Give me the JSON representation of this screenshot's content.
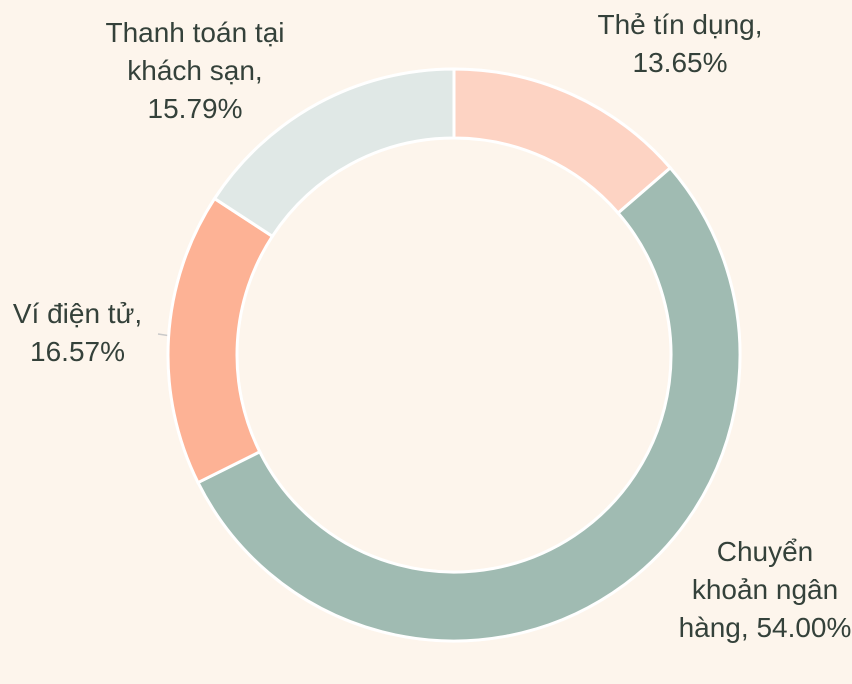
{
  "chart_data": {
    "type": "donut",
    "categories": [
      "Thẻ tín dụng,",
      "Chuyển khoản ngân hàng,",
      "Ví điện tử,",
      "Thanh toán tại khách sạn,"
    ],
    "values": [
      13.65,
      54.0,
      16.57,
      15.79
    ],
    "value_labels": [
      "13.65%",
      "54.00%",
      "16.57%",
      "15.79%"
    ],
    "colors": [
      "#fdd3c3",
      "#a0bbb2",
      "#fdb295",
      "#e0e8e6"
    ]
  }
}
